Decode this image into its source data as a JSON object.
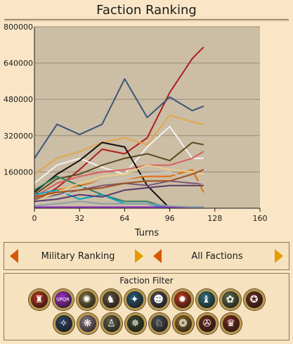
{
  "title": "Faction Ranking",
  "selectors": {
    "ranking_label": "Military Ranking",
    "faction_label": "All Factions"
  },
  "filter": {
    "title": "Faction Filter",
    "icons": [
      {
        "name": "faction-1-icon",
        "color": "#b8331f",
        "glyph": "♜"
      },
      {
        "name": "faction-2-icon",
        "color": "#9c2cc8",
        "glyph": "SPQR"
      },
      {
        "name": "faction-3-icon",
        "color": "#7d7042",
        "glyph": "✺"
      },
      {
        "name": "faction-4-icon",
        "color": "#5d5340",
        "glyph": "♞"
      },
      {
        "name": "faction-5-icon",
        "color": "#2a5a73",
        "glyph": "✦"
      },
      {
        "name": "faction-6-icon",
        "color": "#4a4a58",
        "glyph": "☻"
      },
      {
        "name": "faction-7-icon",
        "color": "#c0391c",
        "glyph": "✹"
      },
      {
        "name": "faction-8-icon",
        "color": "#2e6d7a",
        "glyph": "♝"
      },
      {
        "name": "faction-9-icon",
        "color": "#5b6a4a",
        "glyph": "✿"
      },
      {
        "name": "faction-10-icon",
        "color": "#6a2d22",
        "glyph": "✪"
      },
      {
        "name": "faction-11-icon",
        "color": "#2d4466",
        "glyph": "✧"
      },
      {
        "name": "faction-12-icon",
        "color": "#8a7a86",
        "glyph": "❋"
      },
      {
        "name": "faction-13-icon",
        "color": "#5c604a",
        "glyph": "♙"
      },
      {
        "name": "faction-14-icon",
        "color": "#3d4a2e",
        "glyph": "✵"
      },
      {
        "name": "faction-15-icon",
        "color": "#4a4f55",
        "glyph": "♘"
      },
      {
        "name": "faction-16-icon",
        "color": "#8a6a2a",
        "glyph": "❂"
      },
      {
        "name": "faction-17-icon",
        "color": "#6a2a1e",
        "glyph": "✇"
      },
      {
        "name": "faction-18-icon",
        "color": "#7a2a1a",
        "glyph": "♛"
      }
    ]
  },
  "chart_data": {
    "type": "line",
    "title": "",
    "xlabel": "Turns",
    "ylabel": "",
    "xlim": [
      0,
      160
    ],
    "ylim": [
      0,
      800000
    ],
    "x_ticks": [
      0,
      32,
      64,
      96,
      128,
      160
    ],
    "y_ticks": [
      160000,
      320000,
      480000,
      640000,
      800000
    ],
    "y_tick_labels": [
      "160000",
      "320000",
      "480000",
      "640000",
      "800000"
    ],
    "grid": "horizontal",
    "plot_background": "#ccbda5",
    "series": [
      {
        "color": "#b02020",
        "x": [
          0,
          16,
          32,
          48,
          64,
          80,
          96,
          112,
          120
        ],
        "y": [
          30000,
          90000,
          170000,
          260000,
          240000,
          310000,
          510000,
          660000,
          710000
        ]
      },
      {
        "color": "#3a5878",
        "x": [
          0,
          16,
          32,
          48,
          64,
          80,
          96,
          112,
          120
        ],
        "y": [
          220000,
          370000,
          325000,
          370000,
          570000,
          400000,
          490000,
          430000,
          450000
        ]
      },
      {
        "color": "#e0a84a",
        "x": [
          0,
          16,
          32,
          48,
          64,
          80,
          96,
          112,
          120
        ],
        "y": [
          150000,
          220000,
          250000,
          290000,
          310000,
          280000,
          410000,
          380000,
          370000
        ]
      },
      {
        "color": "#f2f2f2",
        "x": [
          0,
          16,
          32,
          48,
          64,
          80,
          96,
          112,
          120
        ],
        "y": [
          110000,
          190000,
          220000,
          180000,
          150000,
          270000,
          360000,
          220000,
          220000
        ]
      },
      {
        "color": "#5a4a20",
        "x": [
          0,
          16,
          32,
          48,
          64,
          80,
          96,
          112,
          120
        ],
        "y": [
          60000,
          130000,
          150000,
          190000,
          220000,
          240000,
          210000,
          290000,
          280000
        ]
      },
      {
        "color": "#d86060",
        "x": [
          0,
          16,
          32,
          48,
          64,
          80,
          96,
          112,
          120
        ],
        "y": [
          50000,
          110000,
          140000,
          160000,
          170000,
          190000,
          190000,
          220000,
          250000
        ]
      },
      {
        "color": "#111111",
        "x": [
          0,
          16,
          32,
          48,
          64,
          80,
          96
        ],
        "y": [
          70000,
          150000,
          210000,
          290000,
          270000,
          100000,
          0
        ]
      },
      {
        "color": "#e07010",
        "x": [
          0,
          16,
          32,
          48,
          64,
          80,
          96,
          112,
          120
        ],
        "y": [
          40000,
          80000,
          100000,
          120000,
          130000,
          140000,
          140000,
          170000,
          70000
        ]
      },
      {
        "color": "#2e7e5e",
        "x": [
          0,
          16,
          32,
          48,
          64,
          80,
          96
        ],
        "y": [
          80000,
          140000,
          100000,
          60000,
          30000,
          30000,
          0
        ]
      },
      {
        "color": "#00a4c8",
        "x": [
          0,
          16,
          32,
          48,
          64,
          80,
          96
        ],
        "y": [
          60000,
          80000,
          40000,
          60000,
          20000,
          20000,
          0
        ]
      },
      {
        "color": "#7a5878",
        "x": [
          0,
          16,
          32,
          48,
          64,
          80,
          96,
          112,
          120
        ],
        "y": [
          40000,
          60000,
          80000,
          100000,
          110000,
          100000,
          120000,
          110000,
          110000
        ]
      },
      {
        "color": "#e8d08a",
        "x": [
          0,
          16,
          32,
          48,
          64,
          80,
          96,
          112,
          120
        ],
        "y": [
          30000,
          70000,
          110000,
          140000,
          150000,
          190000,
          170000,
          160000,
          150000
        ]
      },
      {
        "color": "#c8c8c8",
        "x": [
          0,
          16,
          32,
          48,
          64,
          80,
          96,
          112,
          120
        ],
        "y": [
          20000,
          50000,
          90000,
          120000,
          130000,
          150000,
          160000,
          120000,
          110000
        ]
      },
      {
        "color": "#a05020",
        "x": [
          0,
          16,
          32,
          48,
          64,
          80,
          96,
          112,
          120
        ],
        "y": [
          50000,
          70000,
          80000,
          90000,
          110000,
          120000,
          120000,
          150000,
          170000
        ]
      },
      {
        "color": "#5a3a6a",
        "x": [
          0,
          16,
          32,
          48,
          64,
          80,
          96,
          112,
          120
        ],
        "y": [
          30000,
          40000,
          60000,
          50000,
          80000,
          90000,
          100000,
          100000,
          100000
        ]
      },
      {
        "color": "#9030c0",
        "x": [
          0,
          16,
          32,
          48,
          64,
          80,
          96,
          112,
          120
        ],
        "y": [
          5000,
          5000,
          5000,
          5000,
          5000,
          5000,
          5000,
          5000,
          5000
        ]
      },
      {
        "color": "#8aa0a8",
        "x": [
          0,
          16,
          32,
          48,
          64,
          80,
          96,
          112,
          120
        ],
        "y": [
          10000,
          20000,
          30000,
          20000,
          20000,
          20000,
          10000,
          5000,
          5000
        ]
      }
    ]
  }
}
